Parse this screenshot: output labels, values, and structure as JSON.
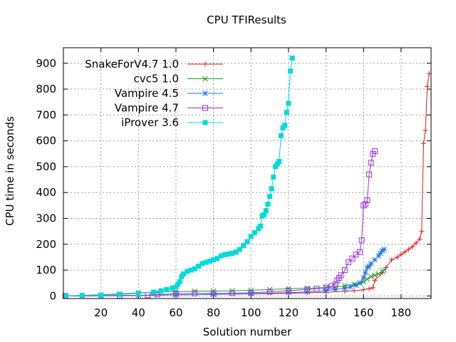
{
  "chart_data": {
    "type": "line",
    "title": "CPU TFIResults",
    "xlabel": "Solution number",
    "ylabel": "CPU time in seconds",
    "xlim": [
      0,
      196
    ],
    "ylim": [
      -10,
      960
    ],
    "x_ticks": [
      20,
      40,
      60,
      80,
      100,
      120,
      140,
      160,
      180
    ],
    "y_ticks": [
      0,
      100,
      200,
      300,
      400,
      500,
      600,
      700,
      800,
      900
    ],
    "grid": true,
    "legend_position": "top-left",
    "series": [
      {
        "name": "SnakeForV4.7 1.0",
        "color": "#dd1c1c",
        "marker": "plus",
        "points": [
          [
            1,
            0
          ],
          [
            20,
            1
          ],
          [
            40,
            2
          ],
          [
            60,
            4
          ],
          [
            80,
            6
          ],
          [
            100,
            8
          ],
          [
            120,
            10
          ],
          [
            130,
            12
          ],
          [
            140,
            14
          ],
          [
            150,
            18
          ],
          [
            155,
            20
          ],
          [
            160,
            24
          ],
          [
            163,
            28
          ],
          [
            165,
            32
          ],
          [
            166,
            60
          ],
          [
            170,
            90
          ],
          [
            172,
            110
          ],
          [
            175,
            140
          ],
          [
            178,
            150
          ],
          [
            180,
            160
          ],
          [
            182,
            170
          ],
          [
            184,
            180
          ],
          [
            186,
            190
          ],
          [
            188,
            205
          ],
          [
            190,
            220
          ],
          [
            191,
            250
          ],
          [
            192,
            590
          ],
          [
            193,
            640
          ],
          [
            194,
            810
          ],
          [
            195,
            860
          ]
        ]
      },
      {
        "name": "cvc5 1.0",
        "color": "#1f9e1f",
        "marker": "x",
        "points": [
          [
            1,
            0
          ],
          [
            10,
            2
          ],
          [
            20,
            5
          ],
          [
            30,
            8
          ],
          [
            40,
            12
          ],
          [
            50,
            15
          ],
          [
            60,
            17
          ],
          [
            70,
            18
          ],
          [
            80,
            19
          ],
          [
            90,
            20
          ],
          [
            100,
            22
          ],
          [
            110,
            25
          ],
          [
            120,
            28
          ],
          [
            130,
            30
          ],
          [
            140,
            32
          ],
          [
            145,
            35
          ],
          [
            150,
            40
          ],
          [
            155,
            45
          ],
          [
            158,
            50
          ],
          [
            160,
            55
          ],
          [
            162,
            65
          ],
          [
            164,
            75
          ],
          [
            166,
            80
          ],
          [
            168,
            85
          ],
          [
            170,
            95
          ],
          [
            171,
            100
          ]
        ]
      },
      {
        "name": "Vampire 4.5",
        "color": "#1f77e6",
        "marker": "star",
        "points": [
          [
            1,
            0
          ],
          [
            20,
            1
          ],
          [
            40,
            2
          ],
          [
            60,
            4
          ],
          [
            80,
            6
          ],
          [
            100,
            9
          ],
          [
            120,
            13
          ],
          [
            130,
            16
          ],
          [
            140,
            20
          ],
          [
            145,
            25
          ],
          [
            150,
            30
          ],
          [
            153,
            35
          ],
          [
            156,
            42
          ],
          [
            158,
            50
          ],
          [
            160,
            70
          ],
          [
            161,
            90
          ],
          [
            162,
            110
          ],
          [
            163,
            115
          ],
          [
            164,
            125
          ],
          [
            166,
            140
          ],
          [
            168,
            155
          ],
          [
            169,
            165
          ],
          [
            170,
            175
          ],
          [
            171,
            180
          ]
        ]
      },
      {
        "name": "Vampire 4.7",
        "color": "#9b30d9",
        "marker": "square",
        "points": [
          [
            1,
            0
          ],
          [
            30,
            1
          ],
          [
            45,
            3
          ],
          [
            50,
            6
          ],
          [
            60,
            9
          ],
          [
            70,
            10
          ],
          [
            80,
            10
          ],
          [
            90,
            11
          ],
          [
            100,
            13
          ],
          [
            110,
            16
          ],
          [
            120,
            20
          ],
          [
            130,
            25
          ],
          [
            135,
            28
          ],
          [
            140,
            32
          ],
          [
            143,
            38
          ],
          [
            145,
            45
          ],
          [
            146,
            60
          ],
          [
            147,
            70
          ],
          [
            148,
            80
          ],
          [
            150,
            100
          ],
          [
            152,
            130
          ],
          [
            154,
            145
          ],
          [
            156,
            160
          ],
          [
            158,
            170
          ],
          [
            159,
            215
          ],
          [
            160,
            350
          ],
          [
            161,
            355
          ],
          [
            162,
            370
          ],
          [
            163,
            470
          ],
          [
            164,
            515
          ],
          [
            165,
            550
          ],
          [
            166,
            560
          ]
        ]
      },
      {
        "name": "iProver 3.6",
        "color": "#00dada",
        "marker": "filled-square",
        "points": [
          [
            1,
            0
          ],
          [
            10,
            2
          ],
          [
            20,
            3
          ],
          [
            30,
            6
          ],
          [
            40,
            10
          ],
          [
            48,
            15
          ],
          [
            52,
            20
          ],
          [
            55,
            25
          ],
          [
            58,
            30
          ],
          [
            60,
            35
          ],
          [
            61,
            45
          ],
          [
            62,
            55
          ],
          [
            63,
            75
          ],
          [
            64,
            85
          ],
          [
            66,
            95
          ],
          [
            68,
            100
          ],
          [
            70,
            105
          ],
          [
            72,
            115
          ],
          [
            74,
            125
          ],
          [
            76,
            130
          ],
          [
            78,
            135
          ],
          [
            80,
            140
          ],
          [
            82,
            145
          ],
          [
            84,
            155
          ],
          [
            86,
            160
          ],
          [
            88,
            162
          ],
          [
            90,
            165
          ],
          [
            92,
            170
          ],
          [
            94,
            180
          ],
          [
            96,
            195
          ],
          [
            98,
            210
          ],
          [
            100,
            230
          ],
          [
            102,
            245
          ],
          [
            104,
            260
          ],
          [
            105,
            270
          ],
          [
            106,
            310
          ],
          [
            107,
            315
          ],
          [
            108,
            330
          ],
          [
            109,
            355
          ],
          [
            110,
            385
          ],
          [
            111,
            415
          ],
          [
            112,
            460
          ],
          [
            113,
            500
          ],
          [
            114,
            510
          ],
          [
            115,
            520
          ],
          [
            116,
            620
          ],
          [
            117,
            650
          ],
          [
            118,
            660
          ],
          [
            119,
            710
          ],
          [
            120,
            745
          ],
          [
            121,
            870
          ],
          [
            122,
            920
          ]
        ]
      }
    ]
  }
}
